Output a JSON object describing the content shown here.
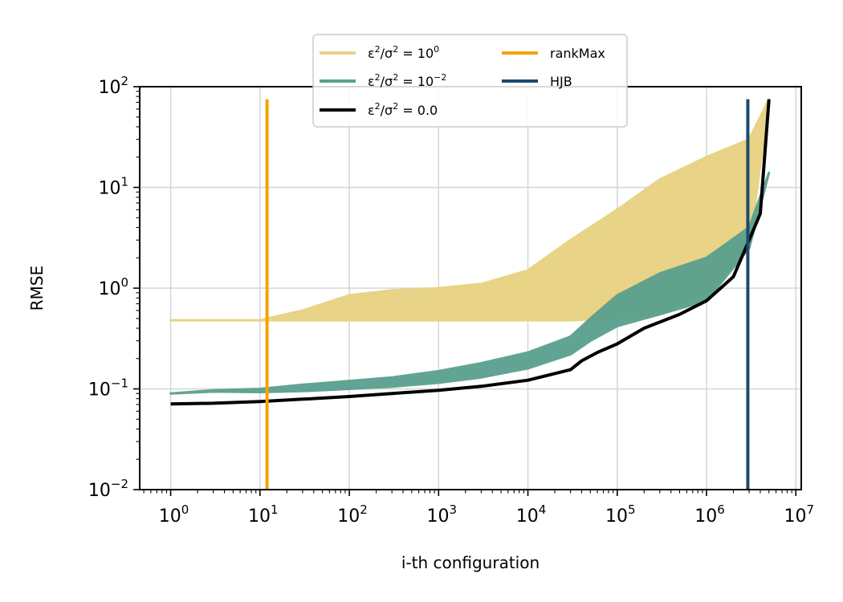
{
  "chart_data": {
    "type": "line",
    "xlabel": "i-th configuration",
    "ylabel": "RMSE",
    "xscale": "log",
    "yscale": "log",
    "xlim": [
      0.45,
      11500000
    ],
    "ylim": [
      0.01,
      100
    ],
    "x_ticks": [
      1,
      10,
      100,
      1000,
      10000,
      100000,
      1000000,
      10000000
    ],
    "x_tick_labels": [
      "10^0",
      "10^1",
      "10^2",
      "10^3",
      "10^4",
      "10^5",
      "10^6",
      "10^7"
    ],
    "y_ticks": [
      0.01,
      0.1,
      1,
      10,
      100
    ],
    "y_tick_labels": [
      "10^-2",
      "10^-1",
      "10^0",
      "10^1",
      "10^2"
    ],
    "grid": true,
    "legend_position": "top-center",
    "series": [
      {
        "name": "ε²/σ² = 10⁰",
        "legend_main": "ε",
        "legend_sup1": "2",
        "legend_mid": "/σ",
        "legend_sup2": "2",
        "legend_eq": " = 10",
        "legend_sup3": "0",
        "color": "#e8d386",
        "band": true,
        "x": [
          1,
          10,
          30,
          100,
          300,
          1000,
          3000,
          10000,
          30000,
          100000,
          300000,
          1000000,
          3000000,
          5000000
        ],
        "y_low": [
          0.48,
          0.48,
          0.48,
          0.48,
          0.48,
          0.48,
          0.48,
          0.48,
          0.48,
          0.5,
          0.55,
          0.9,
          2.5,
          75
        ],
        "y_high": [
          0.48,
          0.48,
          0.6,
          0.85,
          0.95,
          1.0,
          1.1,
          1.5,
          3.0,
          6.0,
          12.0,
          20.0,
          30.0,
          75
        ]
      },
      {
        "name": "ε²/σ² = 10⁻²",
        "legend_main": "ε",
        "legend_sup1": "2",
        "legend_mid": "/σ",
        "legend_sup2": "2",
        "legend_eq": " = 10",
        "legend_sup3": "−2",
        "color": "#5aa08e",
        "band": true,
        "x": [
          1,
          3,
          10,
          30,
          100,
          300,
          1000,
          3000,
          10000,
          30000,
          50000,
          100000,
          300000,
          1000000,
          3000000,
          5000000
        ],
        "y_low": [
          0.09,
          0.094,
          0.093,
          0.095,
          0.1,
          0.105,
          0.115,
          0.13,
          0.16,
          0.22,
          0.3,
          0.42,
          0.55,
          0.75,
          2.5,
          14
        ],
        "y_high": [
          0.09,
          0.097,
          0.1,
          0.11,
          0.12,
          0.13,
          0.15,
          0.18,
          0.23,
          0.33,
          0.5,
          0.85,
          1.4,
          2.0,
          4.0,
          14
        ]
      },
      {
        "name": "ε²/σ² = 0.0",
        "legend_main": "ε",
        "legend_sup1": "2",
        "legend_mid": "/σ",
        "legend_sup2": "2",
        "legend_eq": " = 0.0",
        "legend_sup3": "",
        "color": "#000000",
        "band": false,
        "x": [
          1,
          3,
          10,
          30,
          100,
          300,
          1000,
          3000,
          10000,
          30000,
          40000,
          60000,
          100000,
          200000,
          500000,
          1000000,
          2000000,
          3000000,
          4000000,
          5000000
        ],
        "y": [
          0.071,
          0.072,
          0.075,
          0.079,
          0.084,
          0.09,
          0.097,
          0.106,
          0.122,
          0.155,
          0.19,
          0.23,
          0.28,
          0.4,
          0.55,
          0.75,
          1.3,
          3.0,
          5.5,
          75
        ]
      },
      {
        "name": "rankMax",
        "color": "#f5a300",
        "vline": true,
        "x_value": 12,
        "y_range": [
          0.01,
          75
        ]
      },
      {
        "name": "HJB",
        "color": "#1b4a6b",
        "vline": true,
        "x_value": 2900000,
        "y_range": [
          0.01,
          75
        ]
      }
    ]
  }
}
